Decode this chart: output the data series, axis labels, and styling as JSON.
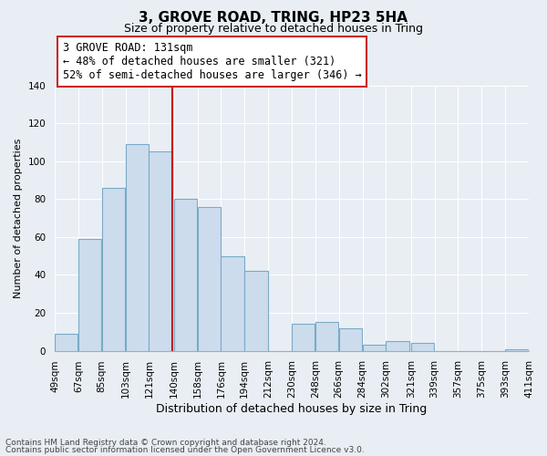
{
  "title": "3, GROVE ROAD, TRING, HP23 5HA",
  "subtitle": "Size of property relative to detached houses in Tring",
  "xlabel": "Distribution of detached houses by size in Tring",
  "ylabel": "Number of detached properties",
  "bar_color": "#ccdcec",
  "bar_edge_color": "#7aaac8",
  "vline_color": "#cc0000",
  "annotation_lines": [
    "3 GROVE ROAD: 131sqm",
    "← 48% of detached houses are smaller (321)",
    "52% of semi-detached houses are larger (346) →"
  ],
  "bins_left": [
    49,
    67,
    85,
    103,
    121,
    140,
    158,
    176,
    194,
    212,
    230,
    248,
    266,
    284,
    302,
    321,
    339,
    357,
    375,
    393
  ],
  "bin_width": 18,
  "counts": [
    9,
    59,
    86,
    109,
    105,
    80,
    76,
    50,
    42,
    0,
    14,
    15,
    12,
    3,
    5,
    4,
    0,
    0,
    0,
    1
  ],
  "tick_labels": [
    "49sqm",
    "67sqm",
    "85sqm",
    "103sqm",
    "121sqm",
    "140sqm",
    "158sqm",
    "176sqm",
    "194sqm",
    "212sqm",
    "230sqm",
    "248sqm",
    "266sqm",
    "284sqm",
    "302sqm",
    "321sqm",
    "339sqm",
    "357sqm",
    "375sqm",
    "393sqm",
    "411sqm"
  ],
  "ylim": [
    0,
    140
  ],
  "yticks": [
    0,
    20,
    40,
    60,
    80,
    100,
    120,
    140
  ],
  "footnote1": "Contains HM Land Registry data © Crown copyright and database right 2024.",
  "footnote2": "Contains public sector information licensed under the Open Government Licence v3.0.",
  "background_color": "#e8eef4",
  "grid_color": "#ffffff",
  "title_fontsize": 11,
  "subtitle_fontsize": 9,
  "xlabel_fontsize": 9,
  "ylabel_fontsize": 8,
  "tick_fontsize": 7.5,
  "annot_fontsize": 8.5
}
